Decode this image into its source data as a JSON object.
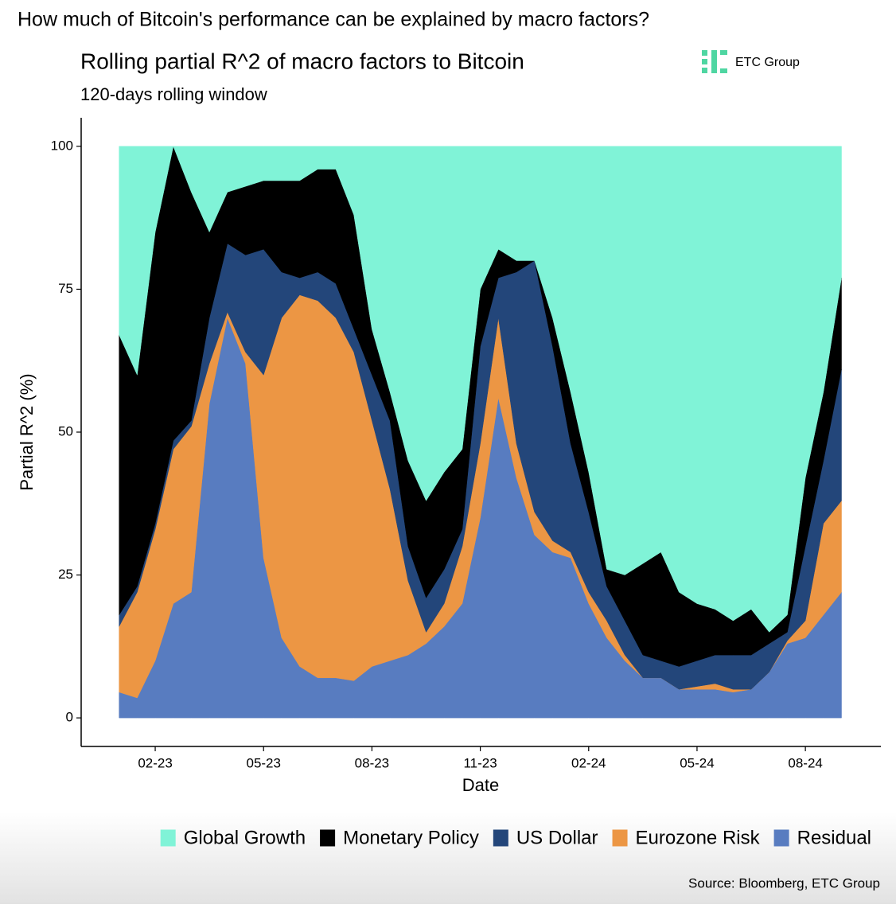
{
  "chart_data": {
    "type": "stacked_area",
    "heading": "How much of Bitcoin's performance can be explained by macro factors?",
    "title": "Rolling partial R^2 of macro factors to Bitcoin",
    "subtitle": "120-days rolling window",
    "logo": "ETC Group",
    "x_label": "Date",
    "y_label": "Partial R^2 (%)",
    "source": "Source: Bloomberg, ETC Group",
    "x": [
      1,
      1.5,
      2,
      2.5,
      3,
      3.5,
      4,
      4.5,
      5,
      5.5,
      6,
      6.5,
      7,
      7.5,
      8,
      8.5,
      9,
      9.5,
      10,
      10.5,
      11,
      11.5,
      12,
      12.5,
      13,
      13.5,
      14,
      14.5,
      15,
      15.5,
      16,
      16.5,
      17,
      17.5,
      18,
      18.5,
      19,
      19.5,
      20,
      20.5,
      21
    ],
    "xlim": [
      -0.05,
      22.09
    ],
    "xticks": [
      {
        "value": 2,
        "label": "02-23"
      },
      {
        "value": 5,
        "label": "05-23"
      },
      {
        "value": 8,
        "label": "08-23"
      },
      {
        "value": 11,
        "label": "11-23"
      },
      {
        "value": 14,
        "label": "02-24"
      },
      {
        "value": 17,
        "label": "05-24"
      },
      {
        "value": 20,
        "label": "08-24"
      }
    ],
    "ylim": [
      -5,
      105
    ],
    "yticks": [
      0,
      25,
      50,
      75,
      100
    ],
    "legend": "bottom",
    "series": [
      {
        "name": "Global Growth",
        "color": "#80f3d7",
        "values": [
          33,
          40,
          15,
          0,
          8,
          15,
          8,
          7,
          6,
          6,
          6,
          4,
          4,
          12,
          32,
          43,
          55,
          62,
          57,
          53,
          25,
          18,
          20,
          20,
          30,
          43,
          57,
          74,
          75,
          73,
          71,
          78,
          80,
          81,
          83,
          81,
          85,
          82,
          58,
          43,
          23
        ]
      },
      {
        "name": "Monetary Policy",
        "color": "#000000",
        "values": [
          49,
          37,
          51,
          51.5,
          40,
          15,
          9,
          12,
          12,
          16,
          17,
          18,
          20,
          20,
          8,
          5,
          15,
          17,
          17,
          14,
          10,
          5,
          2,
          0,
          5,
          9,
          7,
          3,
          8,
          16,
          19,
          13,
          10,
          8,
          6,
          8,
          2,
          3,
          12,
          12,
          16
        ]
      },
      {
        "name": "US Dollar",
        "color": "#23467a",
        "values": [
          2,
          1,
          1,
          1.5,
          1,
          8,
          12,
          17,
          22,
          8,
          3,
          5,
          6,
          4,
          8,
          12,
          6,
          6,
          6,
          3,
          17,
          7,
          30,
          44,
          34,
          19,
          14,
          6,
          6,
          4,
          3,
          4,
          4.5,
          5,
          6,
          6,
          5,
          1.5,
          13,
          11,
          23
        ]
      },
      {
        "name": "Eurozone Risk",
        "color": "#ec9644",
        "values": [
          11.5,
          18.5,
          23,
          27,
          29,
          7,
          1,
          2,
          32,
          56,
          65,
          66,
          63,
          57.5,
          43,
          30,
          13,
          2,
          4,
          10,
          13,
          14,
          6,
          4,
          2,
          1,
          2,
          3,
          1,
          0,
          0,
          0,
          0.5,
          1,
          0.5,
          0,
          0,
          0.5,
          3,
          16,
          16
        ]
      },
      {
        "name": "Residual",
        "color": "#587cc0",
        "values": [
          4.5,
          3.5,
          10,
          20,
          22,
          55,
          70,
          62,
          28,
          14,
          9,
          7,
          7,
          6.5,
          9,
          10,
          11,
          13,
          16,
          20,
          35,
          56,
          42,
          32,
          29,
          28,
          20,
          14,
          10,
          7,
          7,
          5,
          5,
          5,
          4.5,
          5,
          8,
          13,
          14,
          18,
          22
        ]
      }
    ]
  }
}
